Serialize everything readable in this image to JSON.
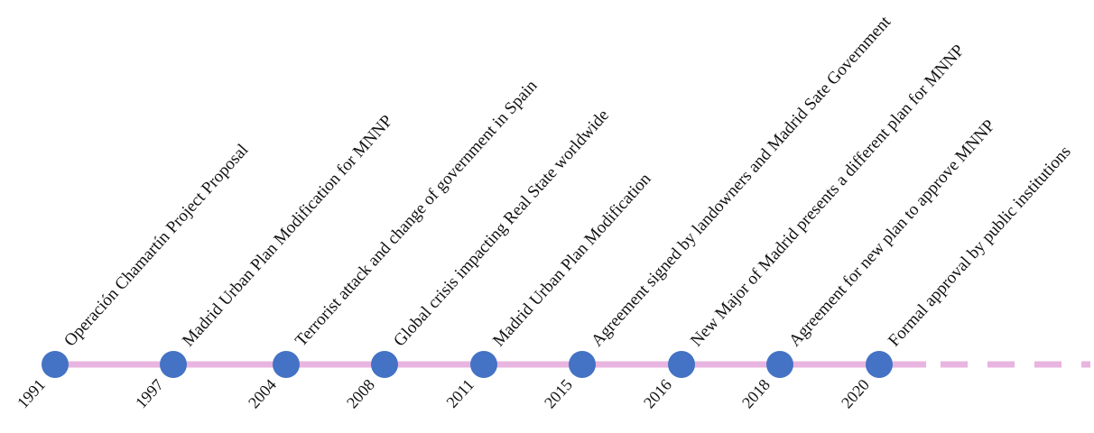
{
  "colors": {
    "line": "#e8b4e0",
    "marker": "#4472c4",
    "text": "#111111"
  },
  "timeline": {
    "events": [
      {
        "year": "1991",
        "label": "Operación  Chamartín Project Proposal"
      },
      {
        "year": "1997",
        "label": "Madrid Urban Plan Modification for MNNP"
      },
      {
        "year": "2004",
        "label": "Terrorist attack and change of government  in Spain"
      },
      {
        "year": "2008",
        "label": "Global crisis impacting Real State worldwide"
      },
      {
        "year": "2011",
        "label": "Madrid Urban Plan Modification"
      },
      {
        "year": "2015",
        "label": "Agreement  signed by landowners  and Madrid Sate Government"
      },
      {
        "year": "2016",
        "label": "New Major of Madrid presents a different plan for MNNP"
      },
      {
        "year": "2018",
        "label": "Agreement  for new plan to approve MNNP"
      },
      {
        "year": "2020",
        "label": "Formal approval  by public institutions"
      }
    ],
    "continuation": "dashed"
  }
}
